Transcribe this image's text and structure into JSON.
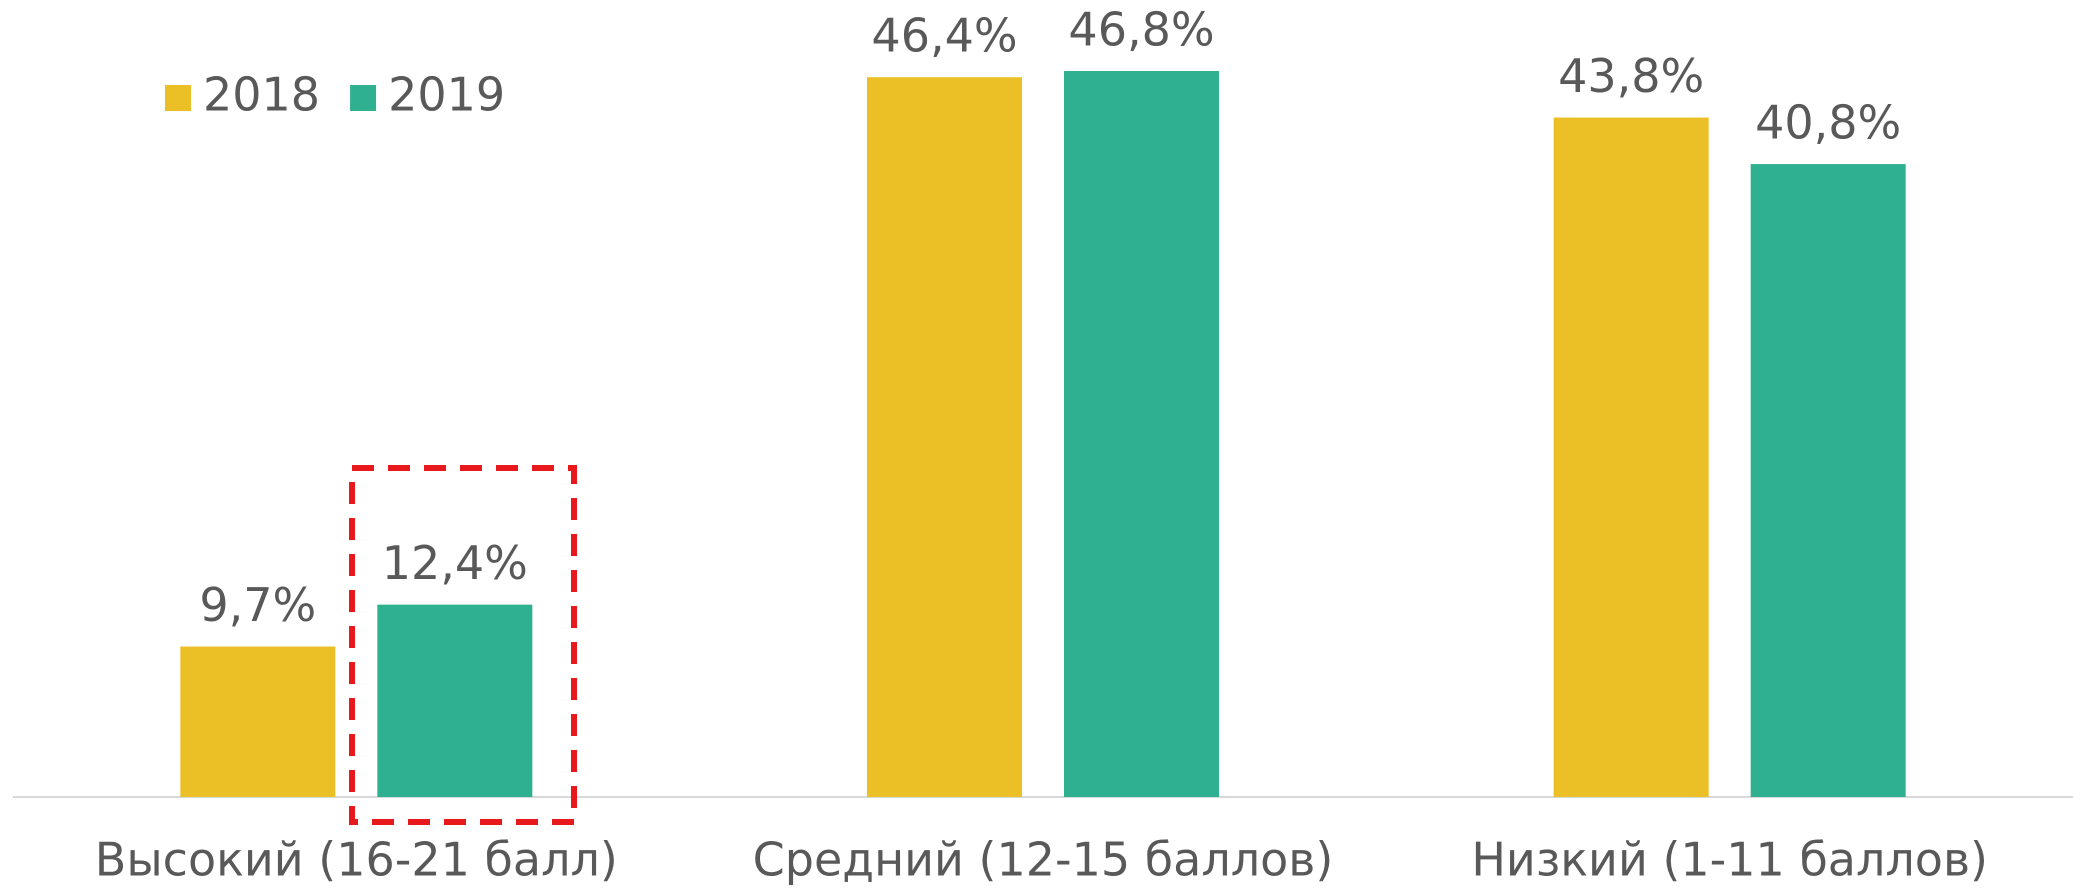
{
  "chart_data": {
    "type": "bar",
    "categories": [
      "Высокий (16-21 балл)",
      "Средний (12-15 баллов)",
      "Низкий (1-11 баллов)"
    ],
    "series": [
      {
        "name": "2018",
        "color": "#ebbf26",
        "values": [
          9.7,
          46.4,
          43.8
        ],
        "value_labels": [
          "9,7%",
          "46,4%",
          "43,8%"
        ]
      },
      {
        "name": "2019",
        "color": "#2fb090",
        "values": [
          12.4,
          46.8,
          40.8
        ],
        "value_labels": [
          "12,4%",
          "46,8%",
          "40,8%"
        ]
      }
    ],
    "legend": "top-left"
  }
}
